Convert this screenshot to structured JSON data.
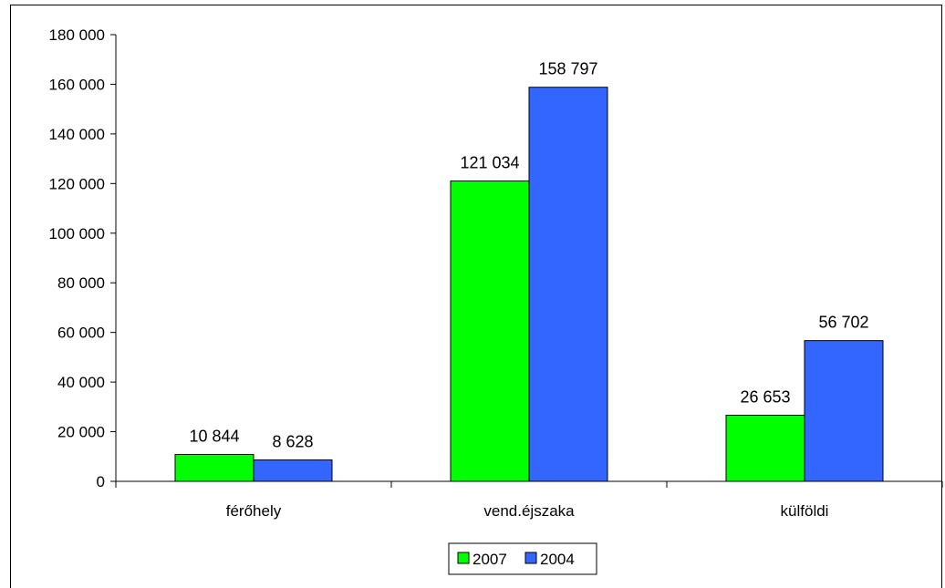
{
  "chart_data": {
    "type": "bar",
    "categories": [
      "férőhely",
      "vend.éjszaka",
      "külföldi"
    ],
    "series": [
      {
        "name": "2007",
        "values": [
          10844,
          121034,
          26653
        ],
        "labels": [
          "10 844",
          "121 034",
          "26 653"
        ],
        "color": "#00ff00"
      },
      {
        "name": "2004",
        "values": [
          8628,
          158797,
          56702
        ],
        "labels": [
          "8 628",
          "158 797",
          "56 702"
        ],
        "color": "#3366ff"
      }
    ],
    "ylim": [
      0,
      180000
    ],
    "yticks": [
      0,
      20000,
      40000,
      60000,
      80000,
      100000,
      120000,
      140000,
      160000,
      180000
    ],
    "ytick_labels": [
      "0",
      "20 000",
      "40 000",
      "60 000",
      "80 000",
      "100 000",
      "120 000",
      "140 000",
      "160 000",
      "180 000"
    ],
    "grid": false,
    "legend": "bottom-center",
    "title": "",
    "xlabel": "",
    "ylabel": ""
  }
}
